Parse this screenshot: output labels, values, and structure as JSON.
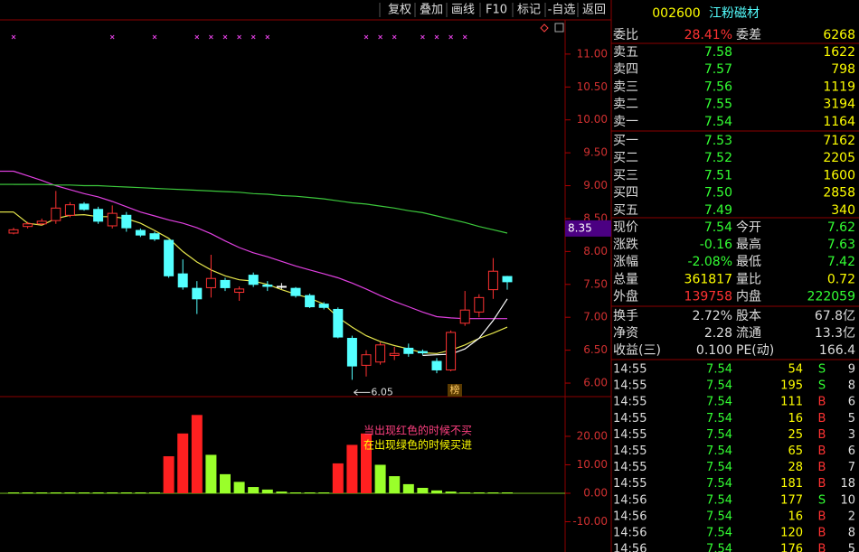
{
  "toolbar": [
    "复权",
    "叠加",
    "画线",
    "F10",
    "标记",
    "-自选",
    "返回"
  ],
  "stock": {
    "code": "002600",
    "name": "江粉磁材"
  },
  "summary": [
    "委比",
    "28.41%",
    "委差",
    "6268"
  ],
  "asks": [
    [
      "卖五",
      "7.58",
      "1622"
    ],
    [
      "卖四",
      "7.57",
      "798"
    ],
    [
      "卖三",
      "7.56",
      "1119"
    ],
    [
      "卖二",
      "7.55",
      "3194"
    ],
    [
      "卖一",
      "7.54",
      "1164"
    ]
  ],
  "bids": [
    [
      "买一",
      "7.53",
      "7162"
    ],
    [
      "买二",
      "7.52",
      "2205"
    ],
    [
      "买三",
      "7.51",
      "1600"
    ],
    [
      "买四",
      "7.50",
      "2858"
    ],
    [
      "买五",
      "7.49",
      "340"
    ]
  ],
  "stats": [
    [
      "现价",
      "7.54",
      "今开",
      "7.62"
    ],
    [
      "涨跌",
      "-0.16",
      "最高",
      "7.63"
    ],
    [
      "涨幅",
      "-2.08%",
      "最低",
      "7.42"
    ],
    [
      "总量",
      "361817",
      "量比",
      "0.72"
    ],
    [
      "外盘",
      "139758",
      "内盘",
      "222059"
    ]
  ],
  "fundamentals": [
    [
      "换手",
      "2.72%",
      "股本",
      "67.8亿"
    ],
    [
      "净资",
      "2.28",
      "流通",
      "13.3亿"
    ],
    [
      "收益(三)",
      "0.100",
      "PE(动)",
      "166.4"
    ]
  ],
  "trades": [
    [
      "14:55",
      "7.54",
      "54",
      "S",
      "9"
    ],
    [
      "14:55",
      "7.54",
      "195",
      "S",
      "8"
    ],
    [
      "14:55",
      "7.54",
      "111",
      "B",
      "6"
    ],
    [
      "14:55",
      "7.54",
      "16",
      "B",
      "5"
    ],
    [
      "14:55",
      "7.54",
      "25",
      "B",
      "3"
    ],
    [
      "14:55",
      "7.54",
      "65",
      "B",
      "6"
    ],
    [
      "14:55",
      "7.54",
      "28",
      "B",
      "7"
    ],
    [
      "14:55",
      "7.54",
      "181",
      "B",
      "18"
    ],
    [
      "14:56",
      "7.54",
      "177",
      "S",
      "10"
    ],
    [
      "14:56",
      "7.54",
      "16",
      "B",
      "2"
    ],
    [
      "14:56",
      "7.54",
      "120",
      "B",
      "8"
    ],
    [
      "14:56",
      "7.54",
      "176",
      "B",
      "5"
    ]
  ],
  "chart_data": [
    {
      "type": "candlestick",
      "open": [
        8.28,
        8.38,
        8.42,
        8.47,
        8.55,
        8.72,
        8.64,
        8.39,
        8.55,
        8.32,
        8.27,
        8.17,
        7.66,
        7.44,
        7.45,
        7.56,
        7.38,
        7.64,
        7.49,
        7.47,
        7.44,
        7.33,
        7.2,
        7.12,
        6.68,
        6.27,
        6.32,
        6.42,
        6.53,
        6.48,
        6.33,
        6.2,
        6.91,
        7.08,
        7.42,
        7.62
      ],
      "high": [
        8.36,
        8.45,
        8.5,
        8.92,
        8.75,
        8.75,
        8.68,
        8.7,
        8.6,
        8.35,
        8.3,
        8.18,
        7.88,
        7.55,
        7.95,
        7.6,
        7.47,
        7.68,
        7.55,
        7.52,
        7.46,
        7.36,
        7.23,
        7.15,
        6.72,
        6.5,
        6.62,
        6.55,
        6.6,
        6.51,
        6.38,
        6.8,
        7.4,
        7.35,
        7.9,
        7.63
      ],
      "low": [
        8.26,
        8.35,
        8.4,
        8.42,
        8.52,
        8.62,
        8.42,
        8.35,
        8.3,
        8.22,
        8.16,
        7.6,
        7.42,
        7.05,
        7.3,
        7.4,
        7.25,
        7.46,
        7.4,
        7.43,
        7.3,
        7.14,
        7.12,
        6.68,
        6.05,
        6.1,
        6.28,
        6.35,
        6.4,
        6.43,
        6.15,
        6.18,
        6.87,
        7.0,
        7.28,
        7.42
      ],
      "close": [
        8.33,
        8.42,
        8.46,
        8.66,
        8.71,
        8.64,
        8.46,
        8.58,
        8.36,
        8.25,
        8.19,
        7.63,
        7.46,
        7.28,
        7.59,
        7.45,
        7.43,
        7.5,
        7.47,
        7.47,
        7.33,
        7.16,
        7.15,
        6.7,
        6.26,
        6.43,
        6.58,
        6.45,
        6.45,
        6.46,
        6.2,
        6.77,
        7.11,
        7.3,
        7.7,
        7.54
      ],
      "up_color": "#ff3232",
      "down_color": "#54ffff",
      "flat_color": "#ffffff",
      "series": [
        {
          "color": "#e6e64c",
          "values": [
            8.6,
            8.43,
            8.4,
            8.5,
            8.55,
            8.56,
            8.53,
            8.53,
            8.5,
            8.43,
            8.32,
            8.2,
            8.0,
            7.84,
            7.72,
            7.63,
            7.57,
            7.55,
            7.5,
            7.42,
            7.35,
            7.29,
            7.2,
            7.0,
            6.85,
            6.72,
            6.63,
            6.57,
            6.52,
            6.46,
            6.45,
            6.5,
            6.58,
            6.68,
            6.76,
            6.85
          ]
        },
        {
          "color": "#e040e0",
          "values": [
            9.22,
            9.15,
            9.08,
            9.0,
            8.94,
            8.88,
            8.83,
            8.76,
            8.68,
            8.6,
            8.54,
            8.48,
            8.43,
            8.36,
            8.27,
            8.16,
            8.06,
            7.98,
            7.92,
            7.85,
            7.78,
            7.72,
            7.66,
            7.6,
            7.52,
            7.43,
            7.33,
            7.24,
            7.16,
            7.08,
            7.01,
            6.99,
            6.98,
            6.98,
            6.98,
            6.98
          ]
        },
        {
          "color": "#3cc83c",
          "values": [
            9.02,
            9.02,
            9.02,
            9.01,
            9.01,
            9.0,
            9.0,
            8.99,
            8.98,
            8.97,
            8.96,
            8.95,
            8.94,
            8.93,
            8.92,
            8.91,
            8.9,
            8.88,
            8.87,
            8.85,
            8.84,
            8.82,
            8.8,
            8.77,
            8.74,
            8.72,
            8.69,
            8.66,
            8.62,
            8.59,
            8.54,
            8.49,
            8.44,
            8.38,
            8.33,
            8.28
          ]
        },
        {
          "color": "#ffffff",
          "values": [
            null,
            null,
            null,
            null,
            null,
            null,
            null,
            null,
            null,
            null,
            null,
            null,
            null,
            null,
            null,
            null,
            null,
            null,
            null,
            null,
            null,
            null,
            null,
            null,
            null,
            null,
            null,
            null,
            null,
            6.42,
            6.43,
            6.44,
            6.52,
            6.68,
            6.95,
            7.28
          ]
        }
      ],
      "ylim": [
        5.8,
        11.52
      ],
      "yticks": [
        {
          "value": 6,
          "label": "6.00"
        },
        {
          "value": 6.5,
          "label": "6.50"
        },
        {
          "value": 7,
          "label": "7.00"
        },
        {
          "value": 7.5,
          "label": "7.50"
        },
        {
          "value": 8,
          "label": "8.00"
        },
        {
          "value": 8.5,
          "label": "8.50"
        },
        {
          "value": 9,
          "label": "9.00"
        },
        {
          "value": 9.5,
          "label": "9.50"
        },
        {
          "value": 10,
          "label": "10.00"
        },
        {
          "value": 10.5,
          "label": "10.50"
        },
        {
          "value": 11,
          "label": "11.00"
        }
      ],
      "cursor_price": 8.35,
      "low_annotation": 6.05,
      "badge": "榜"
    },
    {
      "type": "bar",
      "values": [
        0.3,
        0.3,
        0.3,
        0.3,
        0.3,
        0.3,
        0.3,
        0.3,
        0.3,
        0.3,
        0.3,
        13,
        21,
        27.5,
        13.5,
        6.7,
        4,
        2.2,
        1.3,
        0.6,
        0.3,
        0.3,
        0.3,
        10.5,
        17,
        21,
        10,
        6,
        3.2,
        1.9,
        1,
        0.6,
        0.3,
        0.3,
        0.3,
        0.3
      ],
      "colors": [
        "#9aff2a",
        "#9aff2a",
        "#9aff2a",
        "#9aff2a",
        "#9aff2a",
        "#9aff2a",
        "#9aff2a",
        "#9aff2a",
        "#9aff2a",
        "#9aff2a",
        "#9aff2a",
        "#ff2020",
        "#ff2020",
        "#ff2020",
        "#9aff2a",
        "#9aff2a",
        "#9aff2a",
        "#9aff2a",
        "#9aff2a",
        "#9aff2a",
        "#9aff2a",
        "#9aff2a",
        "#9aff2a",
        "#ff2020",
        "#ff2020",
        "#ff2020",
        "#9aff2a",
        "#9aff2a",
        "#9aff2a",
        "#9aff2a",
        "#9aff2a",
        "#9aff2a",
        "#9aff2a",
        "#9aff2a",
        "#9aff2a",
        "#9aff2a"
      ],
      "ylim": [
        -20,
        33
      ],
      "yticks": [
        {
          "value": -10,
          "label": "-10.00"
        },
        {
          "value": 0,
          "label": "0.00"
        },
        {
          "value": 10,
          "label": "10.00"
        },
        {
          "value": 20,
          "label": "20.00"
        }
      ],
      "annotations": [
        "当出现红色的时候不买",
        "在出现绿色的时候买进"
      ]
    }
  ]
}
